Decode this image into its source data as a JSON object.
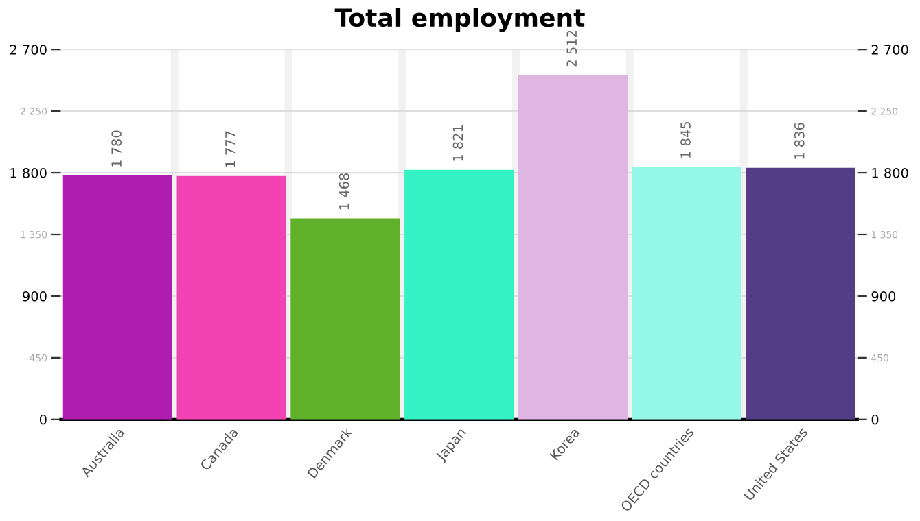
{
  "chart_data": {
    "type": "bar",
    "title": "Total employment",
    "categories": [
      "Australia",
      "Canada",
      "Denmark",
      "Japan",
      "Korea",
      "OECD countries",
      "United States"
    ],
    "values": [
      1780,
      1777,
      1468,
      1821,
      2512,
      1845,
      1836
    ],
    "colors": [
      "#ae1cb0",
      "#f242b4",
      "#61b02a",
      "#35f2c4",
      "#dfb5e2",
      "#93f8e6",
      "#533d87"
    ],
    "value_labels": [
      "1 780",
      "1 777",
      "1 468",
      "1 821",
      "2 512",
      "1 845",
      "1 836"
    ],
    "ylim": [
      0,
      2700
    ],
    "yticks": [
      0,
      {
        "value": 450,
        "label": "450"
      },
      {
        "value": 900,
        "label": "900"
      },
      {
        "value": 1350,
        "label": "1 350"
      },
      {
        "value": 1800,
        "label": "1 800"
      },
      {
        "value": 2250,
        "label": "2 250"
      },
      {
        "value": 2700,
        "label": "2 700"
      }
    ],
    "y2lim": [
      0,
      2700
    ],
    "y2ticks": [
      0,
      {
        "value": 450,
        "label": "450"
      },
      {
        "value": 900,
        "label": "900"
      },
      {
        "value": 1350,
        "label": "1 350"
      },
      {
        "value": 1800,
        "label": "1 800"
      },
      {
        "value": 2250,
        "label": "2 250"
      },
      {
        "value": 2700,
        "label": "2 700"
      }
    ],
    "grid": true
  }
}
